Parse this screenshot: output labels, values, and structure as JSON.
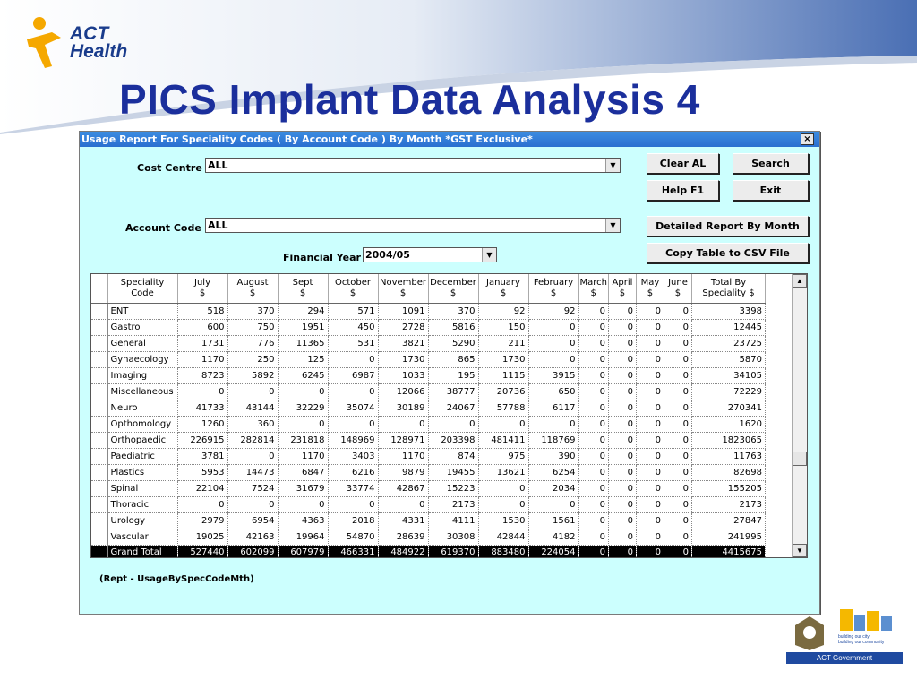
{
  "slide": {
    "title": "PICS Implant Data Analysis 4",
    "logo_line1": "ACT",
    "logo_line2": "Health"
  },
  "window": {
    "title": "Usage Report For Speciality Codes ( By Account Code ) By Month *GST Exclusive*",
    "close_label": "×"
  },
  "form": {
    "cost_centre_label": "Cost Centre",
    "cost_centre_value": "ALL",
    "account_code_label": "Account Code",
    "account_code_value": "ALL",
    "financial_year_label": "Financial Year",
    "financial_year_value": "2004/05"
  },
  "buttons": {
    "clear": "Clear AL",
    "search": "Search",
    "help": "Help F1",
    "exit": "Exit",
    "detailed": "Detailed Report By Month",
    "copy_csv": "Copy Table to CSV File"
  },
  "table": {
    "columns": [
      [
        "Speciality",
        "Code"
      ],
      [
        "July",
        "$"
      ],
      [
        "August",
        "$"
      ],
      [
        "Sept",
        "$"
      ],
      [
        "October",
        "$"
      ],
      [
        "November",
        "$"
      ],
      [
        "December",
        "$"
      ],
      [
        "January",
        "$"
      ],
      [
        "February",
        "$"
      ],
      [
        "March",
        "$"
      ],
      [
        "April",
        "$"
      ],
      [
        "May",
        "$"
      ],
      [
        "June",
        "$"
      ],
      [
        "Total By",
        "Speciality $"
      ]
    ],
    "rows": [
      [
        "ENT",
        "518",
        "370",
        "294",
        "571",
        "1091",
        "370",
        "92",
        "92",
        "0",
        "0",
        "0",
        "0",
        "3398"
      ],
      [
        "Gastro",
        "600",
        "750",
        "1951",
        "450",
        "2728",
        "5816",
        "150",
        "0",
        "0",
        "0",
        "0",
        "0",
        "12445"
      ],
      [
        "General",
        "1731",
        "776",
        "11365",
        "531",
        "3821",
        "5290",
        "211",
        "0",
        "0",
        "0",
        "0",
        "0",
        "23725"
      ],
      [
        "Gynaecology",
        "1170",
        "250",
        "125",
        "0",
        "1730",
        "865",
        "1730",
        "0",
        "0",
        "0",
        "0",
        "0",
        "5870"
      ],
      [
        "Imaging",
        "8723",
        "5892",
        "6245",
        "6987",
        "1033",
        "195",
        "1115",
        "3915",
        "0",
        "0",
        "0",
        "0",
        "34105"
      ],
      [
        "Miscellaneous",
        "0",
        "0",
        "0",
        "0",
        "12066",
        "38777",
        "20736",
        "650",
        "0",
        "0",
        "0",
        "0",
        "72229"
      ],
      [
        "Neuro",
        "41733",
        "43144",
        "32229",
        "35074",
        "30189",
        "24067",
        "57788",
        "6117",
        "0",
        "0",
        "0",
        "0",
        "270341"
      ],
      [
        "Opthomology",
        "1260",
        "360",
        "0",
        "0",
        "0",
        "0",
        "0",
        "0",
        "0",
        "0",
        "0",
        "0",
        "1620"
      ],
      [
        "Orthopaedic",
        "226915",
        "282814",
        "231818",
        "148969",
        "128971",
        "203398",
        "481411",
        "118769",
        "0",
        "0",
        "0",
        "0",
        "1823065"
      ],
      [
        "Paediatric",
        "3781",
        "0",
        "1170",
        "3403",
        "1170",
        "874",
        "975",
        "390",
        "0",
        "0",
        "0",
        "0",
        "11763"
      ],
      [
        "Plastics",
        "5953",
        "14473",
        "6847",
        "6216",
        "9879",
        "19455",
        "13621",
        "6254",
        "0",
        "0",
        "0",
        "0",
        "82698"
      ],
      [
        "Spinal",
        "22104",
        "7524",
        "31679",
        "33774",
        "42867",
        "15223",
        "0",
        "2034",
        "0",
        "0",
        "0",
        "0",
        "155205"
      ],
      [
        "Thoracic",
        "0",
        "0",
        "0",
        "0",
        "0",
        "2173",
        "0",
        "0",
        "0",
        "0",
        "0",
        "0",
        "2173"
      ],
      [
        "Urology",
        "2979",
        "6954",
        "4363",
        "2018",
        "4331",
        "4111",
        "1530",
        "1561",
        "0",
        "0",
        "0",
        "0",
        "27847"
      ],
      [
        "Vascular",
        "19025",
        "42163",
        "19964",
        "54870",
        "28639",
        "30308",
        "42844",
        "4182",
        "0",
        "0",
        "0",
        "0",
        "241995"
      ]
    ],
    "total": [
      "Grand Total",
      "527440",
      "602099",
      "607979",
      "466331",
      "484922",
      "619370",
      "883480",
      "224054",
      "0",
      "0",
      "0",
      "0",
      "4415675"
    ]
  },
  "report_id": "(Rept - UsageBySpecCodeMth)",
  "footer": {
    "gov_label": "ACT Government",
    "tagline1": "building our city",
    "tagline2": "building our community"
  }
}
